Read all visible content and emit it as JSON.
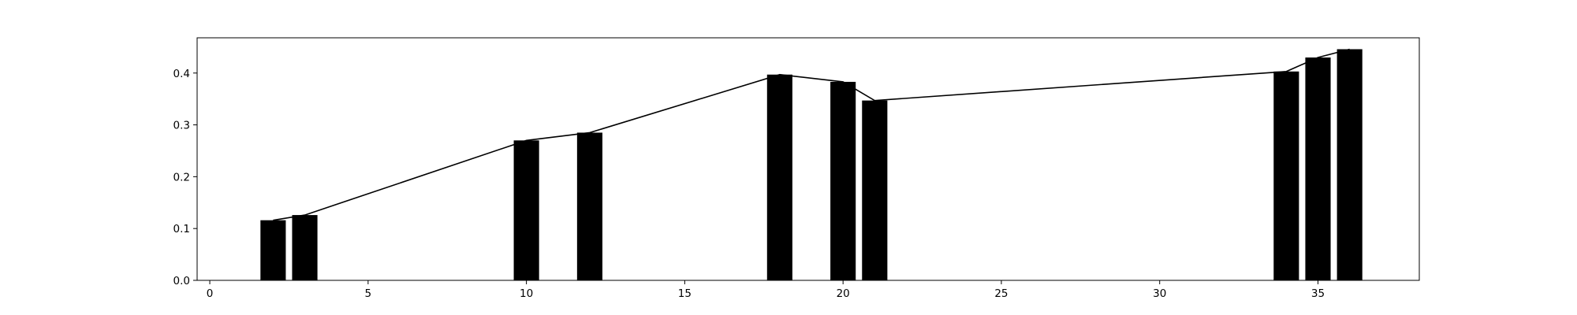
{
  "chart_data": {
    "type": "bar",
    "title": "",
    "xlabel": "",
    "ylabel": "",
    "xlim": [
      -0.4,
      38.2
    ],
    "ylim": [
      0,
      0.468
    ],
    "bar_width": 0.8,
    "grid": false,
    "bar_color": "#000000",
    "line_color": "#000000",
    "x_ticks": [
      {
        "value": 0,
        "label": "0"
      },
      {
        "value": 5,
        "label": "5"
      },
      {
        "value": 10,
        "label": "10"
      },
      {
        "value": 15,
        "label": "15"
      },
      {
        "value": 20,
        "label": "20"
      },
      {
        "value": 25,
        "label": "25"
      },
      {
        "value": 30,
        "label": "30"
      },
      {
        "value": 35,
        "label": "35"
      }
    ],
    "y_ticks": [
      {
        "value": 0.0,
        "label": "0.0"
      },
      {
        "value": 0.1,
        "label": "0.1"
      },
      {
        "value": 0.2,
        "label": "0.2"
      },
      {
        "value": 0.3,
        "label": "0.3"
      },
      {
        "value": 0.4,
        "label": "0.4"
      }
    ],
    "x": [
      2,
      3,
      10,
      12,
      18,
      20,
      21,
      34,
      35,
      36
    ],
    "values": [
      0.116,
      0.126,
      0.27,
      0.285,
      0.397,
      0.383,
      0.347,
      0.403,
      0.43,
      0.446
    ],
    "line": {
      "x": [
        2,
        3,
        10,
        12,
        18,
        20,
        21,
        34,
        35,
        36
      ],
      "values": [
        0.116,
        0.126,
        0.27,
        0.285,
        0.397,
        0.383,
        0.347,
        0.403,
        0.43,
        0.446
      ]
    }
  }
}
